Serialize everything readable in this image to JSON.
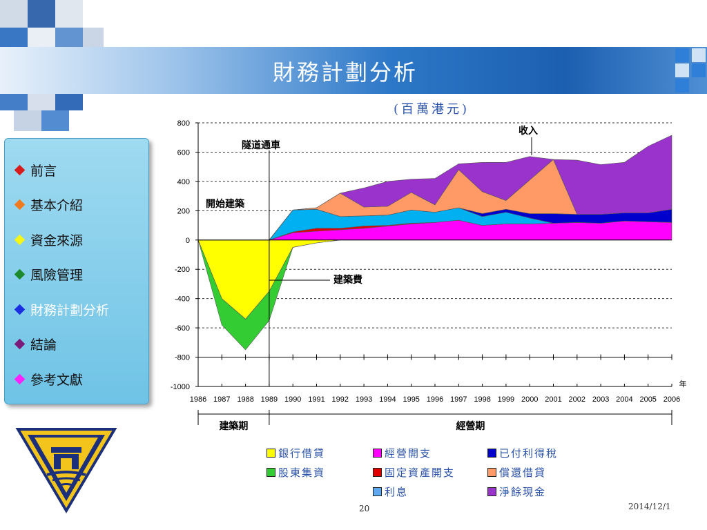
{
  "slide": {
    "title": "財務計劃分析",
    "page_number": "20",
    "date": "2014/12/1"
  },
  "nav": {
    "items": [
      {
        "label": "前言",
        "color": "#d81b1b"
      },
      {
        "label": "基本介紹",
        "color": "#f07b1e"
      },
      {
        "label": "資金來源",
        "color": "#f5f51a"
      },
      {
        "label": "風險管理",
        "color": "#1e8a2e"
      },
      {
        "label": "財務計劃分析",
        "color": "#1a2fe0",
        "active": true
      },
      {
        "label": "結論",
        "color": "#7a1a7a"
      },
      {
        "label": " 參考文獻",
        "color": "#ff22ff"
      }
    ]
  },
  "chart_data": {
    "type": "area",
    "subtitle": "(百萬港元)",
    "x": [
      1986,
      1987,
      1988,
      1989,
      1990,
      1991,
      1992,
      1993,
      1994,
      1995,
      1996,
      1997,
      1998,
      1999,
      2000,
      2001,
      2002,
      2003,
      2004,
      2005,
      2006
    ],
    "ylim": [
      -1000,
      800
    ],
    "yticks": [
      800,
      600,
      400,
      200,
      0,
      -200,
      -400,
      -600,
      -800,
      -1000
    ],
    "xunit": "年",
    "grid": "dashed",
    "series": [
      {
        "name": "銀行借貸",
        "color": "#ffff00",
        "values": [
          0,
          -400,
          -540,
          -350,
          -50,
          -20,
          0,
          0,
          0,
          0,
          0,
          0,
          0,
          0,
          0,
          0,
          0,
          0,
          0,
          0,
          0
        ]
      },
      {
        "name": "股東集資",
        "color": "#33cc33",
        "values": [
          0,
          -180,
          -210,
          -200,
          0,
          0,
          0,
          0,
          0,
          0,
          0,
          0,
          0,
          0,
          0,
          0,
          0,
          0,
          0,
          0,
          0
        ]
      },
      {
        "name": "經營開支",
        "color": "#ff00ff",
        "values": [
          0,
          0,
          0,
          0,
          50,
          60,
          70,
          80,
          95,
          110,
          120,
          135,
          100,
          110,
          110,
          115,
          120,
          115,
          130,
          125,
          120
        ]
      },
      {
        "name": "固定資產開支",
        "color": "#e00000",
        "values": [
          0,
          0,
          0,
          0,
          5,
          20,
          10,
          15,
          5,
          5,
          0,
          0,
          0,
          0,
          0,
          0,
          0,
          0,
          0,
          0,
          0
        ]
      },
      {
        "name": "利息",
        "color": "#00b0f0",
        "values": [
          0,
          0,
          0,
          0,
          150,
          130,
          80,
          70,
          70,
          90,
          70,
          85,
          60,
          80,
          40,
          0,
          0,
          0,
          0,
          0,
          0
        ]
      },
      {
        "name": "已付利得稅",
        "color": "#0000cc",
        "values": [
          0,
          0,
          0,
          0,
          0,
          0,
          0,
          0,
          0,
          0,
          0,
          0,
          20,
          20,
          30,
          65,
          55,
          60,
          55,
          60,
          90
        ]
      },
      {
        "name": "償還借貸",
        "color": "#ff9966",
        "values": [
          0,
          0,
          0,
          0,
          0,
          10,
          160,
          60,
          60,
          120,
          50,
          260,
          150,
          60,
          230,
          370,
          0,
          0,
          0,
          0,
          0
        ]
      },
      {
        "name": "淨餘現金",
        "color": "#9933cc",
        "values": [
          0,
          0,
          0,
          0,
          0,
          0,
          0,
          130,
          170,
          90,
          180,
          40,
          200,
          260,
          160,
          0,
          370,
          340,
          345,
          455,
          505
        ]
      }
    ],
    "annotations": [
      "收入",
      "隧道通車",
      "開始建築",
      "建築費"
    ],
    "periods": [
      {
        "label": "建築期",
        "from": 1986,
        "to": 1989
      },
      {
        "label": "經營期",
        "from": 1989,
        "to": 2006
      }
    ]
  }
}
